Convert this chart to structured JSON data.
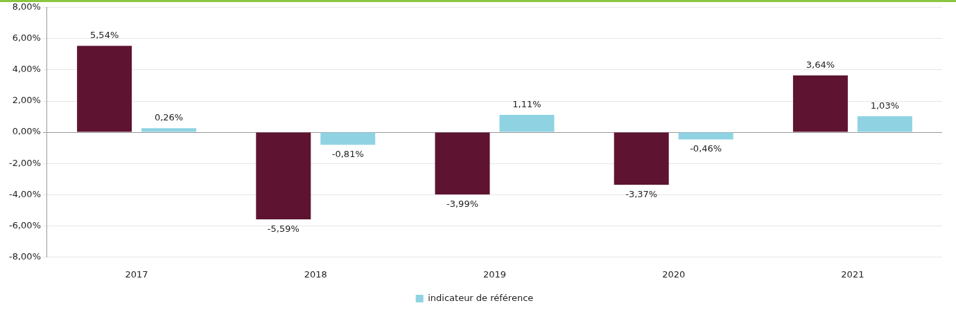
{
  "chart_data": {
    "type": "bar",
    "categories": [
      "2017",
      "2018",
      "2019",
      "2020",
      "2021"
    ],
    "series": [
      {
        "color": "#5e1431",
        "values": [
          5.54,
          -5.59,
          -3.99,
          -3.37,
          3.64
        ],
        "value_labels": [
          "5,54%",
          "-5,59%",
          "-3,99%",
          "-3,37%",
          "3,64%"
        ]
      },
      {
        "name": "indicateur de référence",
        "color": "#8fd3e3",
        "values": [
          0.26,
          -0.81,
          1.11,
          -0.46,
          1.03
        ],
        "value_labels": [
          "0,26%",
          "-0,81%",
          "1,11%",
          "-0,46%",
          "1,03%"
        ]
      }
    ],
    "ylim": [
      -8,
      8
    ],
    "yticks": [
      {
        "value": -8,
        "label": "-8,00%"
      },
      {
        "value": -6,
        "label": "-6,00%"
      },
      {
        "value": -4,
        "label": "-4,00%"
      },
      {
        "value": -2,
        "label": "-2,00%"
      },
      {
        "value": 0,
        "label": "0,00%"
      },
      {
        "value": 2,
        "label": "2,00%"
      },
      {
        "value": 4,
        "label": "4,00%"
      },
      {
        "value": 6,
        "label": "6,00%"
      },
      {
        "value": 8,
        "label": "8,00%"
      }
    ],
    "grid": "y",
    "legend": "bottom"
  }
}
